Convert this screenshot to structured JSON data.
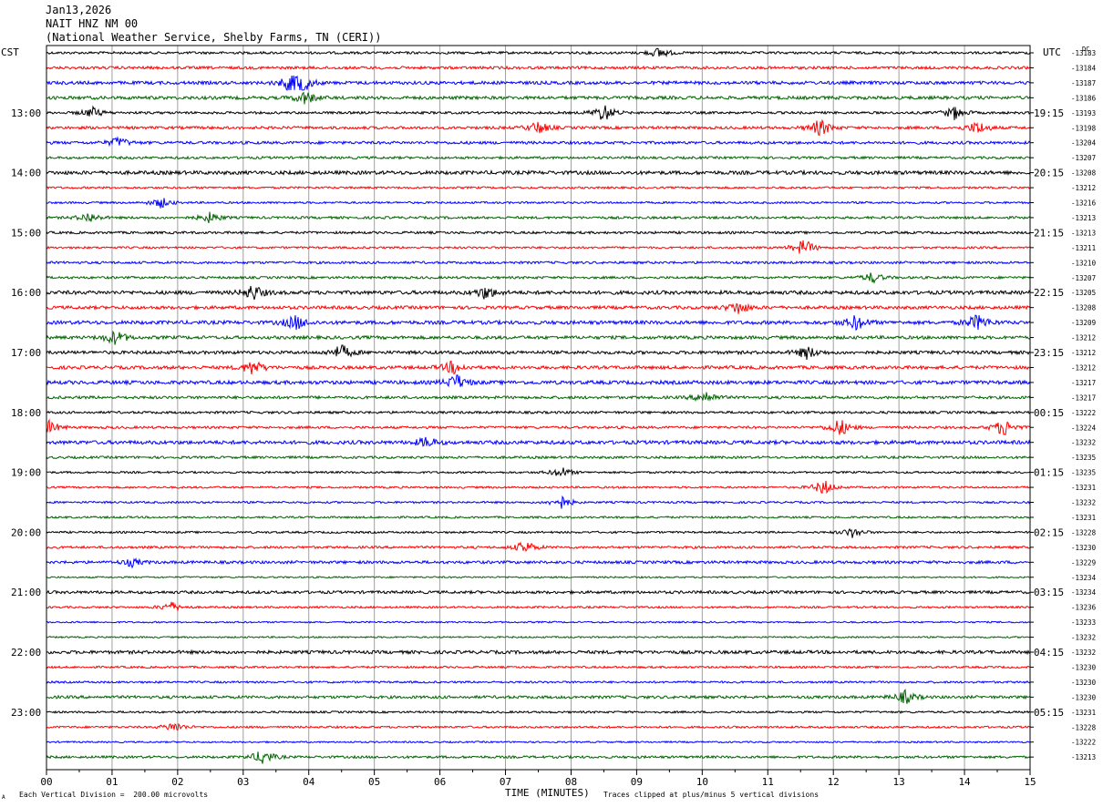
{
  "header": {
    "date": "Jan13,2026",
    "station": "NAIT HNZ NM 00",
    "source": "(National Weather Service, Shelby Farms, TN (CERI))"
  },
  "labels": {
    "left_zone": "CST",
    "right_zone": "UTC",
    "right_dc": "DC"
  },
  "footer": {
    "scale_note": "Each Vertical Division =  200.00 microvolts",
    "xlabel": "TIME (MINUTES)",
    "clip_note": "Traces clipped at plus/minus 5 vertical divisions",
    "corner_mark": "A"
  },
  "colors": {
    "trace_cycle": [
      "#000000",
      "#ff0000",
      "#0000ff",
      "#006400"
    ],
    "grid": "#a0a0a0",
    "axes": "#000000"
  },
  "chart_data": {
    "type": "line",
    "title": "NAIT HNZ NM 00",
    "xlabel": "TIME (MINUTES)",
    "xlim": [
      0,
      15
    ],
    "x_ticks": [
      "00",
      "01",
      "02",
      "03",
      "04",
      "05",
      "06",
      "07",
      "08",
      "09",
      "10",
      "11",
      "12",
      "13",
      "14",
      "15"
    ],
    "rows": 48,
    "left_hour_labels": [
      {
        "row": 4,
        "text": "13:00"
      },
      {
        "row": 8,
        "text": "14:00"
      },
      {
        "row": 12,
        "text": "15:00"
      },
      {
        "row": 16,
        "text": "16:00"
      },
      {
        "row": 20,
        "text": "17:00"
      },
      {
        "row": 24,
        "text": "18:00"
      },
      {
        "row": 28,
        "text": "19:00"
      },
      {
        "row": 32,
        "text": "20:00"
      },
      {
        "row": 36,
        "text": "21:00"
      },
      {
        "row": 40,
        "text": "22:00"
      },
      {
        "row": 44,
        "text": "23:00"
      }
    ],
    "right_hour_labels": [
      {
        "row": 4,
        "text": "19:15"
      },
      {
        "row": 8,
        "text": "20:15"
      },
      {
        "row": 12,
        "text": "21:15"
      },
      {
        "row": 16,
        "text": "22:15"
      },
      {
        "row": 20,
        "text": "23:15"
      },
      {
        "row": 24,
        "text": "00:15"
      },
      {
        "row": 28,
        "text": "01:15"
      },
      {
        "row": 32,
        "text": "02:15"
      },
      {
        "row": 36,
        "text": "03:15"
      },
      {
        "row": 40,
        "text": "04:15"
      },
      {
        "row": 44,
        "text": "05:15"
      }
    ],
    "dc_offsets": [
      "-13183",
      "-13184",
      "-13187",
      "-13186",
      "-13193",
      "-13198",
      "-13204",
      "-13207",
      "-13208",
      "-13212",
      "-13216",
      "-13213",
      "-13213",
      "-13211",
      "-13210",
      "-13207",
      "-13205",
      "-13208",
      "-13209",
      "-13212",
      "-13212",
      "-13212",
      "-13217",
      "-13217",
      "-13222",
      "-13224",
      "-13232",
      "-13235",
      "-13235",
      "-13231",
      "-13232",
      "-13231",
      "-13228",
      "-13230",
      "-13229",
      "-13234",
      "-13234",
      "-13236",
      "-13233",
      "-13232",
      "-13232",
      "-13230",
      "-13230",
      "-13230",
      "-13231",
      "-13228",
      "-13222",
      "-13213"
    ],
    "trace_noise_level": [
      0.6,
      0.7,
      0.8,
      0.8,
      0.6,
      0.7,
      0.7,
      0.6,
      0.9,
      0.5,
      0.5,
      0.6,
      0.6,
      0.5,
      0.6,
      0.6,
      0.9,
      0.8,
      0.9,
      0.8,
      0.8,
      0.8,
      0.9,
      0.7,
      0.6,
      0.6,
      0.9,
      0.6,
      0.5,
      0.5,
      0.5,
      0.5,
      0.5,
      0.6,
      0.7,
      0.4,
      0.7,
      0.5,
      0.4,
      0.4,
      0.8,
      0.5,
      0.5,
      0.7,
      0.5,
      0.5,
      0.4,
      0.6
    ],
    "events": [
      {
        "row": 0,
        "min": 9.35,
        "amp": 2.0
      },
      {
        "row": 2,
        "min": 3.75,
        "amp": 4.0
      },
      {
        "row": 2,
        "min": 3.9,
        "amp": 3.0
      },
      {
        "row": 3,
        "min": 3.95,
        "amp": 2.5
      },
      {
        "row": 4,
        "min": 0.7,
        "amp": 2.0
      },
      {
        "row": 4,
        "min": 8.5,
        "amp": 3.5
      },
      {
        "row": 4,
        "min": 13.85,
        "amp": 2.5
      },
      {
        "row": 5,
        "min": 7.5,
        "amp": 2.5
      },
      {
        "row": 5,
        "min": 11.8,
        "amp": 3.5
      },
      {
        "row": 5,
        "min": 14.2,
        "amp": 2.5
      },
      {
        "row": 6,
        "min": 1.1,
        "amp": 2.0
      },
      {
        "row": 10,
        "min": 1.75,
        "amp": 2.0
      },
      {
        "row": 11,
        "min": 0.65,
        "amp": 2.0
      },
      {
        "row": 11,
        "min": 2.5,
        "amp": 2.0
      },
      {
        "row": 13,
        "min": 11.55,
        "amp": 3.5
      },
      {
        "row": 15,
        "min": 12.6,
        "amp": 2.0
      },
      {
        "row": 16,
        "min": 3.15,
        "amp": 3.0
      },
      {
        "row": 16,
        "min": 6.7,
        "amp": 2.5
      },
      {
        "row": 17,
        "min": 10.55,
        "amp": 2.5
      },
      {
        "row": 18,
        "min": 3.8,
        "amp": 3.0
      },
      {
        "row": 18,
        "min": 12.35,
        "amp": 3.0
      },
      {
        "row": 18,
        "min": 14.2,
        "amp": 3.5
      },
      {
        "row": 19,
        "min": 1.05,
        "amp": 3.0
      },
      {
        "row": 20,
        "min": 4.5,
        "amp": 3.0
      },
      {
        "row": 20,
        "min": 11.6,
        "amp": 2.5
      },
      {
        "row": 21,
        "min": 3.15,
        "amp": 3.0
      },
      {
        "row": 21,
        "min": 6.2,
        "amp": 2.5
      },
      {
        "row": 22,
        "min": 6.25,
        "amp": 3.0
      },
      {
        "row": 23,
        "min": 10.05,
        "amp": 2.5
      },
      {
        "row": 25,
        "min": 12.1,
        "amp": 3.5
      },
      {
        "row": 25,
        "min": 14.6,
        "amp": 3.5
      },
      {
        "row": 25,
        "min": 0.05,
        "amp": 2.5
      },
      {
        "row": 26,
        "min": 5.8,
        "amp": 2.0
      },
      {
        "row": 28,
        "min": 7.85,
        "amp": 2.0
      },
      {
        "row": 29,
        "min": 11.85,
        "amp": 3.0
      },
      {
        "row": 30,
        "min": 7.85,
        "amp": 2.5
      },
      {
        "row": 32,
        "min": 12.3,
        "amp": 2.0
      },
      {
        "row": 33,
        "min": 7.3,
        "amp": 2.5
      },
      {
        "row": 34,
        "min": 1.3,
        "amp": 1.5
      },
      {
        "row": 37,
        "min": 1.9,
        "amp": 2.0
      },
      {
        "row": 43,
        "min": 13.1,
        "amp": 2.5
      },
      {
        "row": 45,
        "min": 1.95,
        "amp": 2.0
      },
      {
        "row": 47,
        "min": 3.3,
        "amp": 3.0
      }
    ]
  }
}
